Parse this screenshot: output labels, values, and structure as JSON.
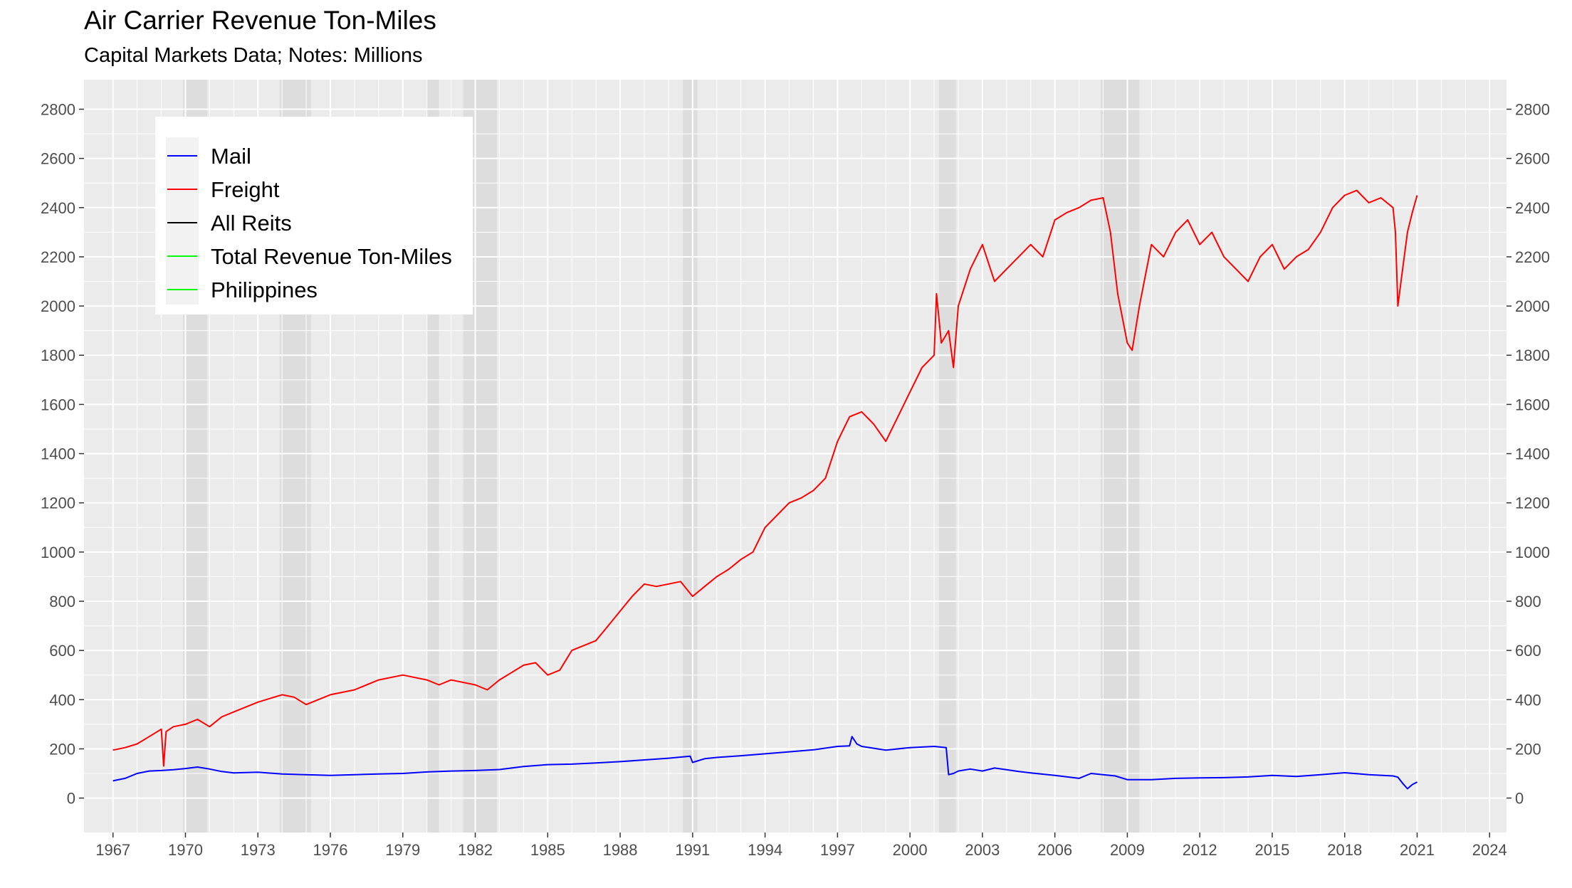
{
  "title": "Air Carrier Revenue Ton-Miles",
  "subtitle": "Capital Markets Data; Notes: Millions",
  "chart_data": {
    "type": "line",
    "title": "Air Carrier Revenue Ton-Miles",
    "subtitle": "Capital Markets Data; Notes: Millions",
    "xlabel": "",
    "ylabel": "",
    "xlim": [
      1965.8,
      2024.7
    ],
    "ylim": [
      -140,
      2920
    ],
    "x_ticks": [
      1967,
      1970,
      1973,
      1976,
      1979,
      1982,
      1985,
      1988,
      1991,
      1994,
      1997,
      2000,
      2003,
      2006,
      2009,
      2012,
      2015,
      2018,
      2021,
      2024
    ],
    "x_tick_labels": [
      "1967",
      "1970",
      "1973",
      "1976",
      "1979",
      "1982",
      "1985",
      "1988",
      "1991",
      "1994",
      "1997",
      "2000",
      "2003",
      "2006",
      "2009",
      "2012",
      "2015",
      "2018",
      "2021",
      "2024"
    ],
    "y_ticks": [
      0,
      200,
      400,
      600,
      800,
      1000,
      1200,
      1400,
      1600,
      1800,
      2000,
      2200,
      2400,
      2600,
      2800
    ],
    "y_tick_labels": [
      "0",
      "200",
      "400",
      "600",
      "800",
      "1000",
      "1200",
      "1400",
      "1600",
      "1800",
      "2000",
      "2200",
      "2400",
      "2600",
      "2800"
    ],
    "secondary_y_axis": true,
    "grid": true,
    "legend_position": "top-left",
    "recession_shading": [
      [
        1969.9,
        1970.9
      ],
      [
        1973.9,
        1975.2
      ],
      [
        1980.0,
        1980.5
      ],
      [
        1981.5,
        1982.9
      ],
      [
        1990.6,
        1991.2
      ],
      [
        2001.2,
        2001.9
      ],
      [
        2007.9,
        2009.5
      ]
    ],
    "series": [
      {
        "name": "Mail",
        "color": "#0000ff",
        "x": [
          1967.0,
          1967.5,
          1968.0,
          1968.5,
          1969.0,
          1969.5,
          1970.0,
          1970.5,
          1971.0,
          1971.5,
          1972.0,
          1973.0,
          1974.0,
          1975.0,
          1976.0,
          1977.0,
          1978.0,
          1979.0,
          1980.0,
          1981.0,
          1982.0,
          1983.0,
          1984.0,
          1985.0,
          1986.0,
          1987.0,
          1988.0,
          1989.0,
          1990.0,
          1990.9,
          1991.0,
          1991.5,
          1992.0,
          1993.0,
          1994.0,
          1995.0,
          1996.0,
          1997.0,
          1997.5,
          1997.6,
          1997.8,
          1998.0,
          1999.0,
          2000.0,
          2001.0,
          2001.5,
          2001.6,
          2001.8,
          2002.0,
          2002.5,
          2003.0,
          2003.5,
          2004.0,
          2004.5,
          2005.0,
          2006.0,
          2007.0,
          2007.5,
          2008.0,
          2008.5,
          2009.0,
          2010.0,
          2011.0,
          2012.0,
          2013.0,
          2014.0,
          2015.0,
          2016.0,
          2017.0,
          2018.0,
          2019.0,
          2020.0,
          2020.2,
          2020.4,
          2020.6,
          2020.8,
          2021.0
        ],
        "values": [
          70,
          80,
          100,
          110,
          112,
          115,
          120,
          126,
          118,
          108,
          102,
          105,
          98,
          95,
          92,
          95,
          98,
          100,
          106,
          110,
          112,
          116,
          128,
          136,
          138,
          143,
          148,
          155,
          162,
          170,
          145,
          160,
          165,
          172,
          180,
          188,
          196,
          210,
          212,
          250,
          220,
          210,
          195,
          205,
          210,
          205,
          95,
          100,
          110,
          118,
          110,
          122,
          115,
          108,
          102,
          92,
          80,
          100,
          95,
          90,
          75,
          75,
          80,
          82,
          83,
          86,
          92,
          88,
          95,
          103,
          95,
          90,
          85,
          60,
          38,
          55,
          65
        ]
      },
      {
        "name": "Freight",
        "color": "#ff0000",
        "x": [
          1967.0,
          1967.5,
          1968.0,
          1968.5,
          1969.0,
          1969.1,
          1969.2,
          1969.5,
          1970.0,
          1970.5,
          1971.0,
          1971.5,
          1972.0,
          1973.0,
          1974.0,
          1974.5,
          1975.0,
          1975.5,
          1976.0,
          1977.0,
          1978.0,
          1979.0,
          1980.0,
          1980.5,
          1981.0,
          1982.0,
          1982.5,
          1983.0,
          1983.5,
          1984.0,
          1984.5,
          1985.0,
          1985.5,
          1986.0,
          1987.0,
          1987.5,
          1988.0,
          1988.5,
          1989.0,
          1989.5,
          1990.0,
          1990.5,
          1991.0,
          1991.5,
          1992.0,
          1992.5,
          1993.0,
          1993.5,
          1994.0,
          1994.5,
          1995.0,
          1995.5,
          1996.0,
          1996.5,
          1997.0,
          1997.5,
          1998.0,
          1998.5,
          1999.0,
          1999.5,
          2000.0,
          2000.5,
          2001.0,
          2001.1,
          2001.3,
          2001.6,
          2001.8,
          2002.0,
          2002.5,
          2003.0,
          2003.5,
          2004.0,
          2004.5,
          2005.0,
          2005.5,
          2006.0,
          2006.5,
          2007.0,
          2007.5,
          2008.0,
          2008.3,
          2008.6,
          2009.0,
          2009.2,
          2009.5,
          2010.0,
          2010.5,
          2011.0,
          2011.5,
          2012.0,
          2012.5,
          2013.0,
          2013.5,
          2014.0,
          2014.5,
          2015.0,
          2015.5,
          2016.0,
          2016.5,
          2017.0,
          2017.5,
          2018.0,
          2018.5,
          2019.0,
          2019.5,
          2020.0,
          2020.1,
          2020.2,
          2020.4,
          2020.6,
          2020.8,
          2021.0
        ],
        "values": [
          195,
          205,
          220,
          250,
          280,
          130,
          270,
          290,
          300,
          320,
          290,
          330,
          350,
          390,
          420,
          410,
          380,
          400,
          420,
          440,
          480,
          500,
          480,
          460,
          480,
          460,
          440,
          480,
          510,
          540,
          550,
          500,
          520,
          600,
          640,
          700,
          760,
          820,
          870,
          860,
          870,
          880,
          820,
          860,
          900,
          930,
          970,
          1000,
          1100,
          1150,
          1200,
          1220,
          1250,
          1300,
          1450,
          1550,
          1570,
          1520,
          1450,
          1550,
          1650,
          1750,
          1800,
          2050,
          1850,
          1900,
          1750,
          2000,
          2150,
          2250,
          2100,
          2150,
          2200,
          2250,
          2200,
          2350,
          2380,
          2400,
          2430,
          2440,
          2300,
          2050,
          1850,
          1820,
          2000,
          2250,
          2200,
          2300,
          2350,
          2250,
          2300,
          2200,
          2150,
          2100,
          2200,
          2250,
          2150,
          2200,
          2230,
          2300,
          2400,
          2450,
          2470,
          2420,
          2440,
          2400,
          2300,
          2000,
          2150,
          2300,
          2380,
          2450
        ]
      },
      {
        "name": "All Reits",
        "color": "#000000",
        "x": [],
        "values": []
      },
      {
        "name": "Total Revenue Ton-Miles",
        "color": "#00ff00",
        "x": [],
        "values": []
      },
      {
        "name": "Philippines",
        "color": "#00ff00",
        "x": [],
        "values": []
      }
    ]
  }
}
